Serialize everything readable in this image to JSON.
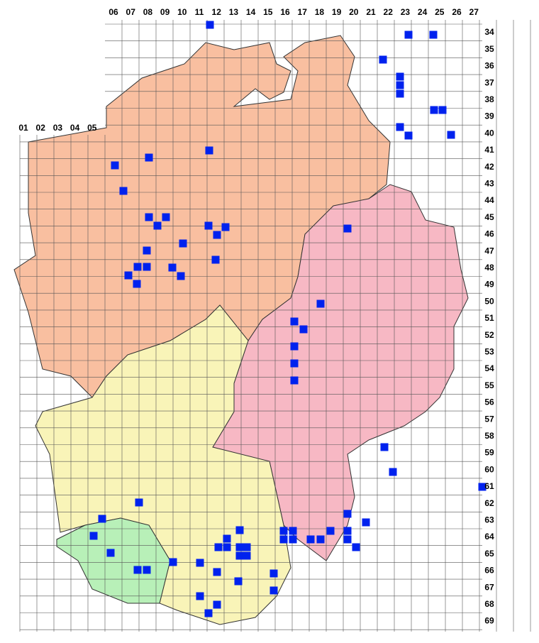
{
  "top_column_labels": [
    "06",
    "07",
    "08",
    "09",
    "10",
    "11",
    "12",
    "13",
    "14",
    "15",
    "16",
    "17",
    "18",
    "19",
    "20",
    "21",
    "22",
    "23",
    "24",
    "25",
    "26",
    "27"
  ],
  "left_column_labels": [
    "01",
    "02",
    "03",
    "04",
    "05"
  ],
  "row_labels": [
    "34",
    "35",
    "36",
    "37",
    "38",
    "39",
    "40",
    "41",
    "42",
    "43",
    "44",
    "45",
    "46",
    "47",
    "48",
    "49",
    "50",
    "51",
    "52",
    "53",
    "54",
    "55",
    "56",
    "57",
    "58",
    "59",
    "60",
    "61",
    "62",
    "63",
    "64",
    "65",
    "66",
    "67",
    "68",
    "69"
  ]
}
